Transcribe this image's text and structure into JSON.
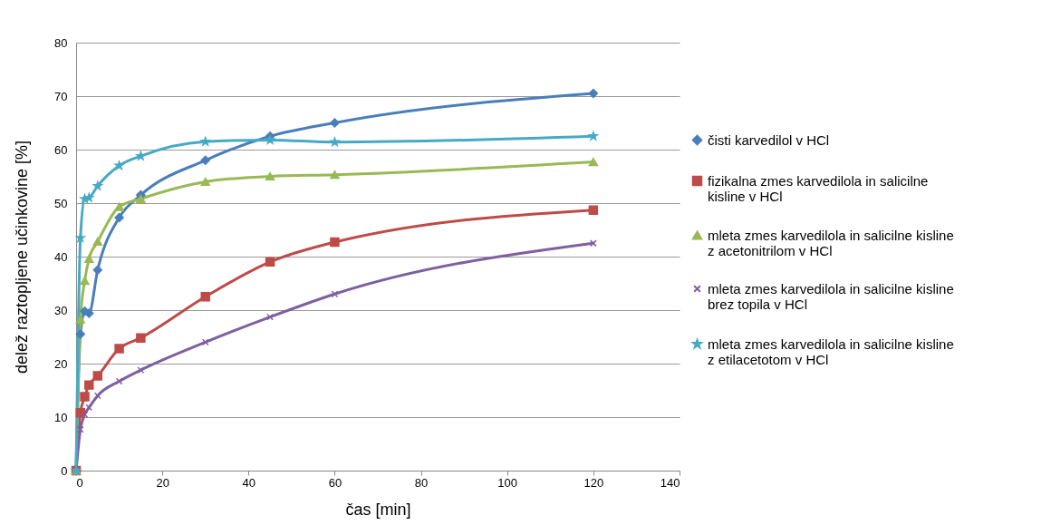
{
  "chart_data": {
    "type": "line",
    "xlabel": "čas [min]",
    "ylabel": "delež raztopljene učinkovine [%]",
    "x": [
      0,
      1,
      2,
      3,
      5,
      10,
      15,
      30,
      45,
      60,
      120
    ],
    "xlim": [
      0,
      140
    ],
    "xticks": [
      0,
      20,
      40,
      60,
      80,
      100,
      120,
      140
    ],
    "ylim": [
      0,
      80
    ],
    "yticks": [
      0,
      10,
      20,
      30,
      40,
      50,
      60,
      70,
      80
    ],
    "grid": "y",
    "legend": "right",
    "line_style": "solid",
    "series": [
      {
        "name": "čisti karvedilol v HCl",
        "color": "#4a7ebb",
        "marker": "diamond",
        "values": [
          0,
          25.5,
          29.8,
          29.4,
          37.5,
          47.3,
          51.5,
          58,
          62.5,
          65,
          70.5
        ]
      },
      {
        "name": "fizikalna zmes karvedilola in salicilne kisline v HCl",
        "color": "#be4b48",
        "marker": "square",
        "values": [
          0,
          10.8,
          13.8,
          16,
          17.7,
          22.8,
          24.8,
          32.5,
          39,
          42.7,
          48.7
        ]
      },
      {
        "name": "mleta zmes karvedilola in salicilne kisline z acetonitrilom v HCl",
        "color": "#98b954",
        "marker": "triangle",
        "values": [
          0,
          28.3,
          35.5,
          39.6,
          42.8,
          49.3,
          50.8,
          54,
          55,
          55.3,
          57.7
        ]
      },
      {
        "name": "mleta zmes karvedilola in salicilne kisline brez topila v HCl",
        "color": "#7d60a0",
        "marker": "cross",
        "values": [
          0,
          7.7,
          10.5,
          11.8,
          14,
          16.7,
          18.8,
          24,
          28.7,
          33,
          42.5
        ]
      },
      {
        "name": "mleta zmes karvedilola in salicilne kisline z etilacetotom v HCl",
        "color": "#46aac5",
        "marker": "star",
        "values": [
          0,
          43.5,
          50.8,
          51,
          53.2,
          57,
          58.8,
          61.5,
          61.8,
          61.4,
          62.5
        ]
      }
    ]
  }
}
